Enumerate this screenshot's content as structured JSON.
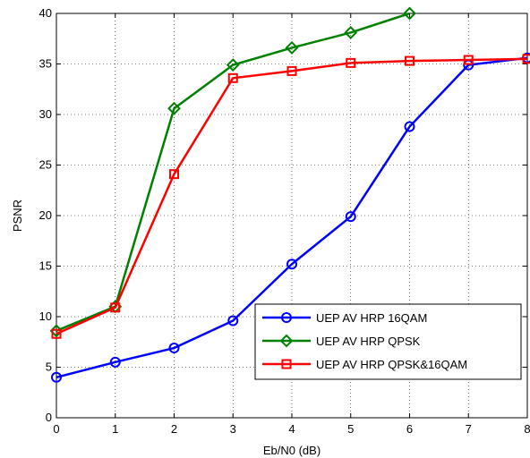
{
  "chart_data": {
    "type": "line",
    "xlabel": "Eb/N0 (dB)",
    "ylabel": "PSNR",
    "xlim": [
      0,
      8
    ],
    "ylim": [
      0,
      40
    ],
    "xticks": [
      "0",
      "1",
      "2",
      "3",
      "4",
      "5",
      "6",
      "7",
      "8"
    ],
    "yticks": [
      "0",
      "5",
      "10",
      "15",
      "20",
      "25",
      "30",
      "35",
      "40"
    ],
    "grid": true,
    "legend_position": "lower-right",
    "series": [
      {
        "name": "UEP AV HRP 16QAM",
        "color": "#0000ff",
        "marker": "circle",
        "x": [
          0,
          1,
          2,
          3,
          4,
          5,
          6,
          7,
          8
        ],
        "y": [
          4.0,
          5.5,
          6.9,
          9.6,
          15.2,
          19.9,
          28.8,
          34.9,
          35.6
        ]
      },
      {
        "name": "UEP AV HRP QPSK",
        "color": "#008000",
        "marker": "diamond",
        "x": [
          0,
          1,
          2,
          3,
          4,
          5,
          6
        ],
        "y": [
          8.6,
          11.0,
          30.6,
          34.9,
          36.6,
          38.1,
          40.0
        ]
      },
      {
        "name": "UEP AV HRP QPSK&16QAM",
        "color": "#ff0000",
        "marker": "square",
        "x": [
          0,
          1,
          2,
          3,
          4,
          5,
          6,
          7,
          8
        ],
        "y": [
          8.3,
          10.9,
          24.1,
          33.6,
          34.3,
          35.1,
          35.3,
          35.4,
          35.5
        ]
      }
    ]
  }
}
